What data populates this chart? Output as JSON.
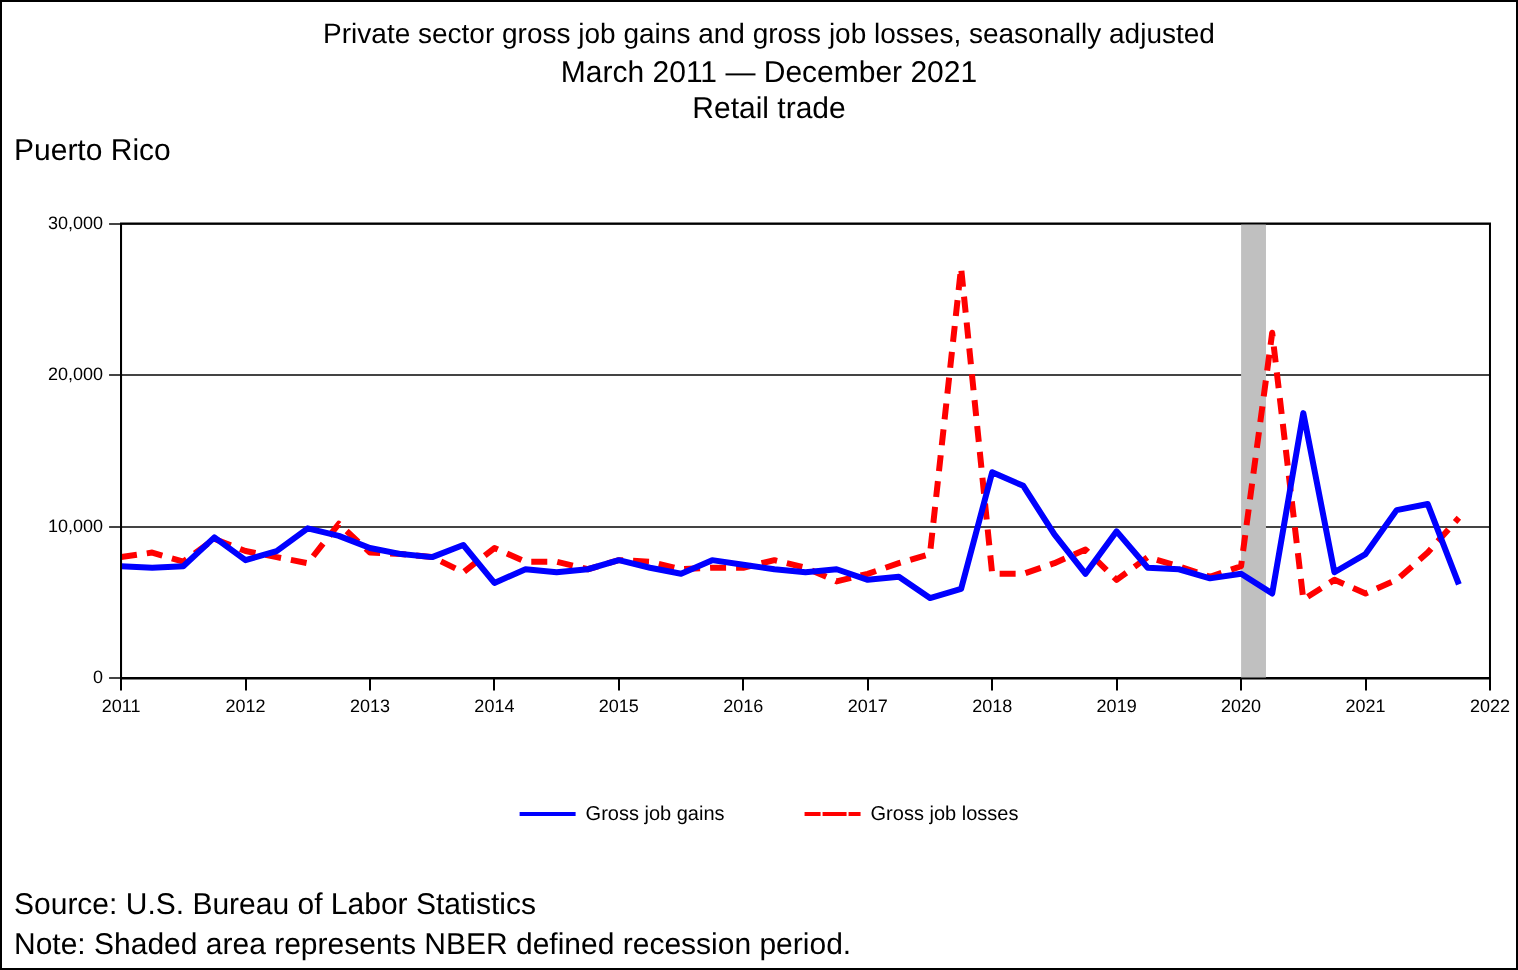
{
  "chart_data": {
    "type": "line",
    "title": "Private sector gross job gains and gross job losses, seasonally adjusted",
    "subtitle": "March 2011 — December 2021\nRetail trade",
    "x": [
      2011,
      2011.25,
      2011.5,
      2011.75,
      2012,
      2012.25,
      2012.5,
      2012.75,
      2013,
      2013.25,
      2013.5,
      2013.75,
      2014,
      2014.25,
      2014.5,
      2014.75,
      2015,
      2015.25,
      2015.5,
      2015.75,
      2016,
      2016.25,
      2016.5,
      2016.75,
      2017,
      2017.25,
      2017.5,
      2017.75,
      2018,
      2018.25,
      2018.5,
      2018.75,
      2019,
      2019.25,
      2019.5,
      2019.75,
      2020,
      2020.25,
      2020.5,
      2020.75,
      2021,
      2021.25,
      2021.5,
      2021.75
    ],
    "series": [
      {
        "name": "Gross job gains",
        "color": "#0000ff",
        "line_style": "solid",
        "values": [
          7400,
          7300,
          7400,
          9300,
          7800,
          8400,
          9900,
          9400,
          8600,
          8200,
          8000,
          8800,
          6300,
          7200,
          7000,
          7200,
          7800,
          7300,
          6900,
          7800,
          7500,
          7200,
          7000,
          7200,
          6500,
          6700,
          5300,
          5900,
          13600,
          12700,
          9500,
          6900,
          9700,
          7300,
          7200,
          6600,
          6900,
          5600,
          17500,
          7000,
          8200,
          11100,
          11500,
          6200
        ]
      },
      {
        "name": "Gross job losses",
        "color": "#ff0000",
        "line_style": "dashed",
        "values": [
          8000,
          8300,
          7700,
          9200,
          8400,
          8000,
          7600,
          10200,
          8300,
          8200,
          8000,
          7000,
          8600,
          7700,
          7700,
          7200,
          7800,
          7700,
          7200,
          7300,
          7300,
          7800,
          7300,
          6400,
          6900,
          7600,
          8200,
          27100,
          6900,
          6900,
          7600,
          8500,
          6500,
          8000,
          7400,
          6700,
          7400,
          22800,
          5200,
          6500,
          5600,
          6500,
          8300,
          10600
        ]
      }
    ],
    "xlim": [
      2011,
      2022
    ],
    "xticks": [
      2011,
      2012,
      2013,
      2014,
      2015,
      2016,
      2017,
      2018,
      2019,
      2020,
      2021,
      2022
    ],
    "ylim": [
      0,
      30000
    ],
    "yticks": [
      0,
      {
        "value": 10000,
        "label": "10,000"
      },
      {
        "value": 20000,
        "label": "20,000"
      },
      {
        "value": 30000,
        "label": "30,000"
      }
    ],
    "grid": "y",
    "legend": "bottom",
    "marker": "none",
    "bands": [
      {
        "axis": "x",
        "from": 2020,
        "to": 2020.2,
        "color": "#c0c0c0"
      }
    ],
    "annotations": [
      "Puerto Rico",
      "Source: U.S. Bureau of Labor Statistics",
      "Note: Shaded area represents NBER defined recession period."
    ]
  }
}
